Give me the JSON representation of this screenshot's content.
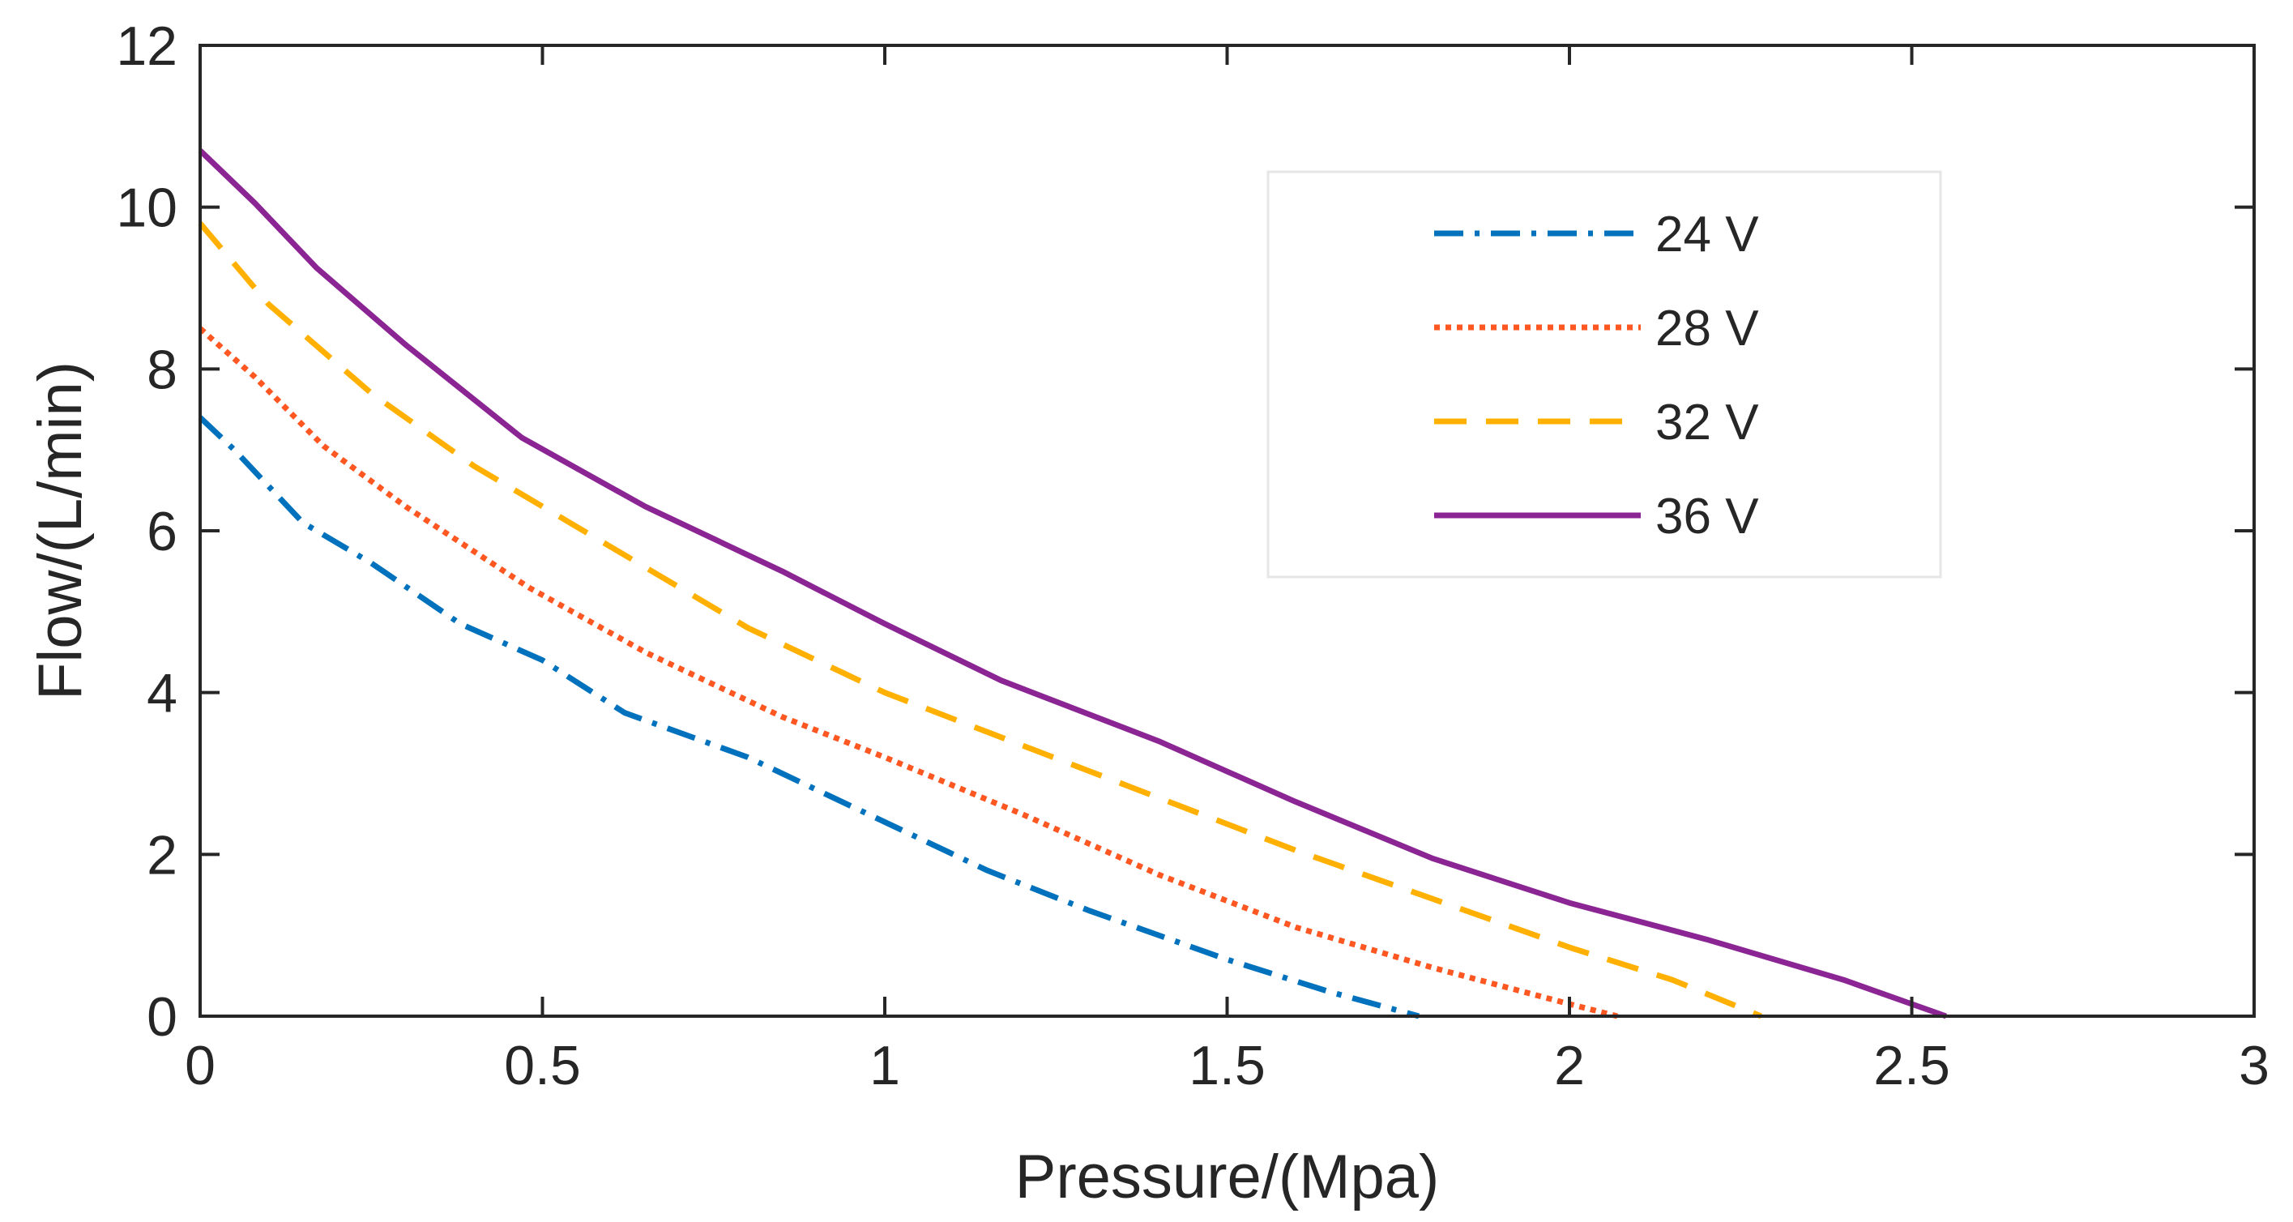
{
  "chart_data": {
    "type": "line",
    "title": "",
    "xlabel": "Pressure/(Mpa)",
    "ylabel": "Flow/(L/min)",
    "xlim": [
      0,
      3
    ],
    "ylim": [
      0,
      12
    ],
    "xticks": [
      0,
      0.5,
      1,
      1.5,
      2,
      2.5,
      3
    ],
    "xtick_labels": [
      "0",
      "0.5",
      "1",
      "1.5",
      "2",
      "2.5",
      "3"
    ],
    "yticks": [
      0,
      2,
      4,
      6,
      8,
      10,
      12
    ],
    "ytick_labels": [
      "0",
      "2",
      "4",
      "6",
      "8",
      "10",
      "12"
    ],
    "grid": false,
    "legend_position": "top-right",
    "series": [
      {
        "name": "24 V",
        "color": "#0072BD",
        "style": "dashdot",
        "x": [
          0,
          0.05,
          0.15,
          0.25,
          0.38,
          0.5,
          0.62,
          0.8,
          1.0,
          1.15,
          1.3,
          1.5,
          1.65,
          1.78
        ],
        "y": [
          7.4,
          7.0,
          6.1,
          5.6,
          4.85,
          4.4,
          3.75,
          3.2,
          2.4,
          1.8,
          1.3,
          0.7,
          0.3,
          0
        ]
      },
      {
        "name": "28 V",
        "color": "#FF5722",
        "style": "dotted",
        "x": [
          0,
          0.08,
          0.18,
          0.3,
          0.48,
          0.65,
          0.85,
          1.0,
          1.2,
          1.4,
          1.6,
          1.8,
          2.0,
          2.07
        ],
        "y": [
          8.5,
          7.9,
          7.05,
          6.3,
          5.3,
          4.5,
          3.7,
          3.2,
          2.5,
          1.75,
          1.1,
          0.6,
          0.15,
          0
        ]
      },
      {
        "name": "32 V",
        "color": "#FFB000",
        "style": "dashed",
        "x": [
          0,
          0.1,
          0.25,
          0.4,
          0.6,
          0.8,
          1.0,
          1.2,
          1.4,
          1.6,
          1.8,
          2.0,
          2.15,
          2.28
        ],
        "y": [
          9.8,
          8.8,
          7.7,
          6.8,
          5.8,
          4.8,
          4.0,
          3.35,
          2.7,
          2.05,
          1.45,
          0.85,
          0.45,
          0
        ]
      },
      {
        "name": "36 V",
        "color": "#8B2594",
        "style": "solid",
        "x": [
          0,
          0.08,
          0.17,
          0.3,
          0.47,
          0.65,
          0.85,
          1.0,
          1.17,
          1.4,
          1.6,
          1.8,
          2.0,
          2.2,
          2.4,
          2.55
        ],
        "y": [
          10.7,
          10.05,
          9.25,
          8.3,
          7.15,
          6.3,
          5.5,
          4.85,
          4.15,
          3.4,
          2.65,
          1.95,
          1.4,
          0.95,
          0.45,
          0
        ]
      }
    ]
  }
}
